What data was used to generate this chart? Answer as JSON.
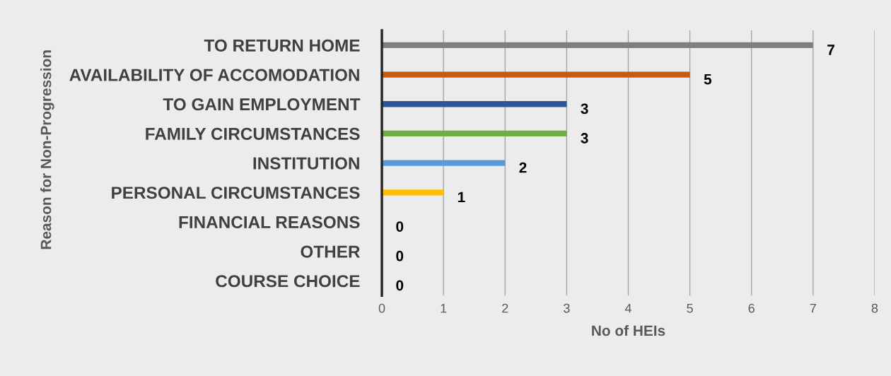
{
  "chart_data": {
    "type": "bar",
    "orientation": "horizontal",
    "xlabel": "No of HEIs",
    "ylabel": "Reason for Non-Progression",
    "categories": [
      "TO RETURN HOME",
      "AVAILABILITY OF ACCOMODATION",
      "TO GAIN EMPLOYMENT",
      "FAMILY CIRCUMSTANCES",
      "INSTITUTION",
      "PERSONAL CIRCUMSTANCES",
      "FINANCIAL REASONS",
      "OTHER",
      "COURSE CHOICE"
    ],
    "values": [
      7,
      5,
      3,
      3,
      2,
      1,
      0,
      0,
      0
    ],
    "colors": [
      "#7f7f7f",
      "#c55a11",
      "#2f5597",
      "#70ad47",
      "#5b9bd5",
      "#ffc000",
      "#a5a5a5",
      "#a5a5a5",
      "#a5a5a5"
    ],
    "xlim": [
      0,
      8
    ],
    "xticks": [
      0,
      1,
      2,
      3,
      4,
      5,
      6,
      7,
      8
    ],
    "grid": "x",
    "data_labels": true
  }
}
